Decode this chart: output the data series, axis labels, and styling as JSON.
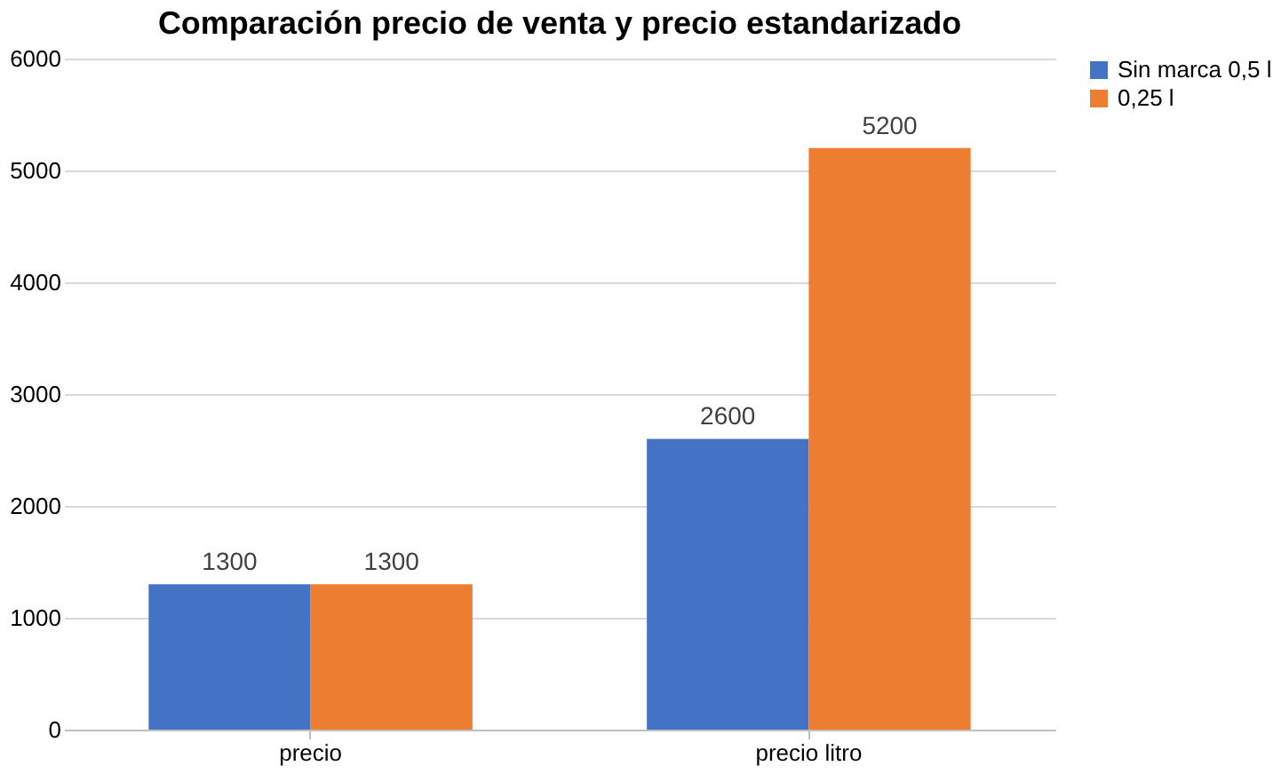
{
  "chart_data": {
    "type": "bar",
    "title": "Comparación precio de venta y precio estandarizado",
    "categories": [
      "precio",
      "precio litro"
    ],
    "series": [
      {
        "name": "Sin marca 0,5 l",
        "color": "#4472c4",
        "values": [
          1300,
          2600
        ]
      },
      {
        "name": "0,25 l",
        "color": "#ed7d31",
        "values": [
          1300,
          5200
        ]
      }
    ],
    "ylim": [
      0,
      6000
    ],
    "yticks": [
      0,
      1000,
      2000,
      3000,
      4000,
      5000,
      6000
    ],
    "grid": "y",
    "legend": "right",
    "data_labels": true
  }
}
